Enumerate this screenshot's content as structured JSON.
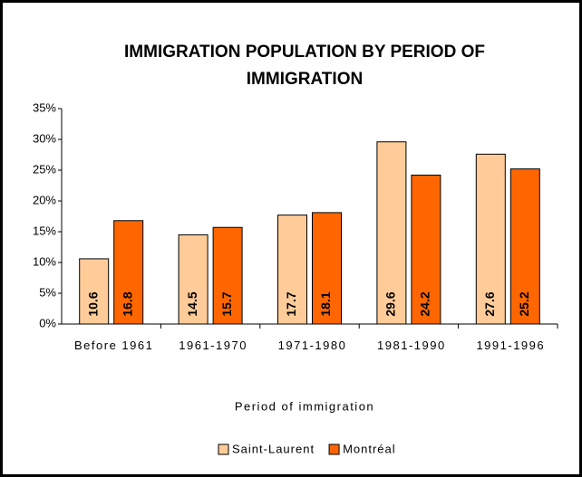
{
  "chart_data": {
    "type": "bar",
    "title": "IMMIGRATION POPULATION BY PERIOD OF IMMIGRATION",
    "x_label": "Period of immigration",
    "categories": [
      "Before 1961",
      "1961-1970",
      "1971-1980",
      "1981-1990",
      "1991-1996"
    ],
    "series": [
      {
        "name": "Saint-Laurent",
        "color": "#ffcc99",
        "values": [
          10.6,
          14.5,
          17.7,
          29.6,
          27.6
        ]
      },
      {
        "name": "Montréal",
        "color": "#ff6600",
        "values": [
          16.8,
          15.7,
          18.1,
          24.2,
          25.2
        ]
      }
    ],
    "ylim": [
      0,
      35
    ],
    "yticks": [
      {
        "value": 0,
        "label": "0%"
      },
      {
        "value": 5,
        "label": "5%"
      },
      {
        "value": 10,
        "label": "10%"
      },
      {
        "value": 15,
        "label": "15%"
      },
      {
        "value": 20,
        "label": "20%"
      },
      {
        "value": 25,
        "label": "25%"
      },
      {
        "value": 30,
        "label": "30%"
      },
      {
        "value": 35,
        "label": "35%"
      }
    ],
    "grid": false,
    "legend": "bottom"
  }
}
